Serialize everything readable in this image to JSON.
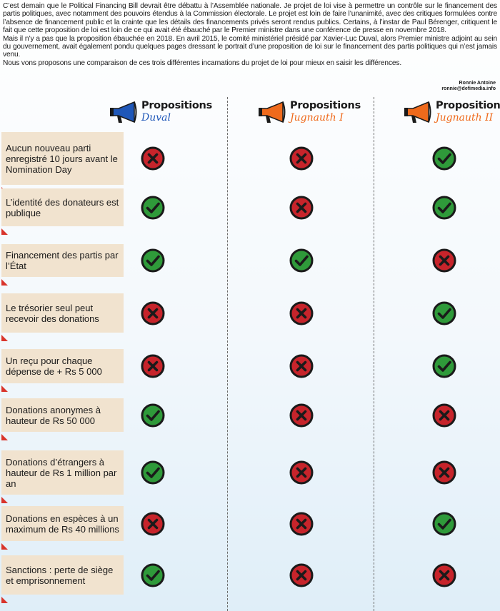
{
  "intro": {
    "paragraphs": [
      "C’est demain que le Political Financing Bill devrait être débattu à l’Assemblée nationale. Je projet de loi vise à permettre un contrôle sur le financement des partis politiques, avec notamment des pouvoirs étendus à la Commission électorale. Le projet est loin de faire l’unanimité, avec des critiques formulées contre l’absence de financement public et la crainte que les détails des financements privés seront rendus publics. Certains, à l’instar de Paul Bérenger, critiquent le fait que cette proposition de loi est loin de ce qui avait été ébauché par le Premier ministre dans une conférence de presse en novembre 2018.",
      "Mais il n’y a pas que la proposition ébauchée en 2018. En avril 2015, le comité ministériel présidé par Xavier-Luc Duval, alors Premier ministre adjoint au sein du gouvernement, avait également pondu quelques pages dressant le portrait d’une proposition de loi sur le financement des partis politiques qui n’est jamais venu.",
      "Nous vons proposons une comparaison de ces trois différentes incarnations du projet de loi pour mieux en saisir les différences."
    ]
  },
  "credit": {
    "author": "Ronnie Antoine",
    "email": "ronnie@defimedia.info"
  },
  "columns": [
    {
      "title": "Propositions",
      "subtitle": "Duval",
      "color": "#1f57b8"
    },
    {
      "title": "Propositions",
      "subtitle": "Jugnauth I",
      "color": "#ef6a1c"
    },
    {
      "title": "Propositions",
      "subtitle": "Jugnauth II",
      "color": "#ef6a1c"
    }
  ],
  "rows": [
    {
      "label": "Aucun nouveau parti enregistré 10 jours avant le Nomination Day",
      "values": [
        "no",
        "no",
        "yes"
      ]
    },
    {
      "label": "L’identité des donateurs est publique",
      "values": [
        "yes",
        "no",
        "yes"
      ]
    },
    {
      "label": "Financement des partis par l’État",
      "values": [
        "yes",
        "yes",
        "no"
      ]
    },
    {
      "label": "Le trésorier seul peut recevoir des donations",
      "values": [
        "no",
        "no",
        "yes"
      ]
    },
    {
      "label": "Un reçu pour chaque dépense de + Rs 5 000",
      "values": [
        "no",
        "no",
        "yes"
      ]
    },
    {
      "label": "Donations anonymes à hauteur de Rs 50 000",
      "values": [
        "yes",
        "no",
        "no"
      ]
    },
    {
      "label": "Donations d’étrangers à hauteur de Rs 1 million par an",
      "values": [
        "yes",
        "no",
        "no"
      ]
    },
    {
      "label": "Donations en espèces à un maximum de Rs 40 millions",
      "values": [
        "no",
        "no",
        "yes"
      ]
    },
    {
      "label": "Sanctions : perte de siège et emprisonnement",
      "values": [
        "yes",
        "no",
        "no"
      ]
    }
  ],
  "colors": {
    "yes": "#2f9a3a",
    "no": "#c7242b",
    "ring": "#1a1a1a",
    "label_bg": "#f1e3cf",
    "corner": "#d9342b"
  }
}
